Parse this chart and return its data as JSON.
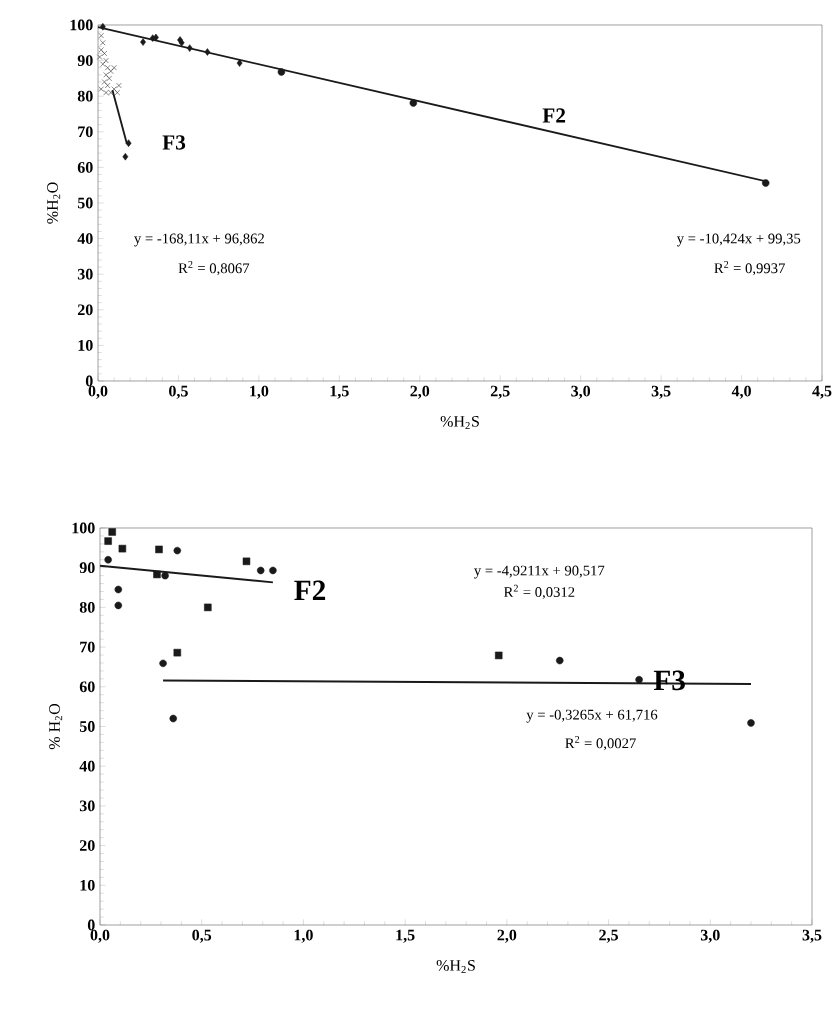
{
  "chart_data": [
    {
      "type": "scatter",
      "xlabel": "%H$_{2}$S",
      "ylabel": "%H$_{2}$O",
      "xlim": [
        0,
        4.5
      ],
      "ylim": [
        0,
        100
      ],
      "xticks": [
        {
          "value": 0,
          "label": "0,0"
        },
        {
          "value": 0.5,
          "label": "0,5"
        },
        {
          "value": 1,
          "label": "1,0"
        },
        {
          "value": 1.5,
          "label": "1,5"
        },
        {
          "value": 2,
          "label": "2,0"
        },
        {
          "value": 2.5,
          "label": "2,5"
        },
        {
          "value": 3,
          "label": "3,0"
        },
        {
          "value": 3.5,
          "label": "3,5"
        },
        {
          "value": 4,
          "label": "4,0"
        },
        {
          "value": 4.5,
          "label": "4,5"
        }
      ],
      "yticks": [
        0,
        10,
        20,
        30,
        40,
        50,
        60,
        70,
        80,
        90,
        100
      ],
      "series": [
        {
          "type": "scatter",
          "marker": "diamond",
          "color": "#1a1a1a",
          "x": [
            0.03,
            0.28,
            0.34,
            0.36,
            0.51,
            0.52,
            0.57,
            0.68,
            0.88
          ],
          "values": [
            99.5,
            95.2,
            96.3,
            96.5,
            95.8,
            95,
            93.5,
            92.4,
            89.3
          ]
        },
        {
          "type": "scatter",
          "marker": "circle",
          "color": "#1a1a1a",
          "x": [
            1.14,
            1.96,
            4.15
          ],
          "values": [
            86.8,
            78.1,
            55.6
          ]
        },
        {
          "type": "scatter",
          "marker": "cross",
          "color": "#1a1a1a",
          "x": [
            0.02,
            0.03,
            0.02,
            0.04,
            0.01,
            0.05,
            0.03,
            0.06,
            0.08,
            0.1,
            0.05,
            0.07,
            0.04,
            0.02,
            0.05,
            0.08,
            0.1,
            0.12,
            0.13,
            0.06
          ],
          "values": [
            97,
            95,
            93,
            92,
            91,
            90,
            89,
            88,
            87,
            88,
            86,
            85,
            84,
            82,
            81,
            81,
            82,
            81,
            83,
            83
          ]
        },
        {
          "type": "scatter",
          "marker": "diamond",
          "color": "#1a1a1a",
          "x": [
            0.19,
            0.17
          ],
          "values": [
            66.8,
            63
          ]
        },
        {
          "type": "line",
          "color": "#1a1a1a",
          "x": [
            0,
            4.15
          ],
          "values": [
            99.4,
            56.1
          ]
        },
        {
          "type": "line",
          "color": "#1a1a1a",
          "x": [
            0.09,
            0.18
          ],
          "values": [
            81.7,
            66.6
          ]
        }
      ],
      "annotations": [
        "F3",
        "F2",
        "y = -168,11x + 96,862",
        "R$^{2}$ = 0,8067",
        "y = -10,424x + 99,35",
        "R$^{2}$ = 0,9937"
      ]
    },
    {
      "type": "scatter",
      "xlabel": "%H$_{2}$S",
      "ylabel": "% H$_{2}$O",
      "xlim": [
        0,
        3.5
      ],
      "ylim": [
        0,
        100
      ],
      "xticks": [
        {
          "value": 0,
          "label": "0,0"
        },
        {
          "value": 0.5,
          "label": "0,5"
        },
        {
          "value": 1,
          "label": "1,0"
        },
        {
          "value": 1.5,
          "label": "1,5"
        },
        {
          "value": 2,
          "label": "2,0"
        },
        {
          "value": 2.5,
          "label": "2,5"
        },
        {
          "value": 3,
          "label": "3,0"
        },
        {
          "value": 3.5,
          "label": "3,5"
        }
      ],
      "yticks": [
        0,
        10,
        20,
        30,
        40,
        50,
        60,
        70,
        80,
        90,
        100
      ],
      "series": [
        {
          "type": "scatter",
          "marker": "square",
          "color": "#1a1a1a",
          "x": [
            0.06,
            0.04,
            0.11,
            0.29,
            0.28,
            0.72,
            0.53,
            0.38
          ],
          "values": [
            99,
            96.7,
            94.8,
            94.6,
            88.3,
            91.6,
            80,
            68.6
          ]
        },
        {
          "type": "scatter",
          "marker": "circle",
          "color": "#1a1a1a",
          "x": [
            0.04,
            0.38,
            0.32,
            0.09,
            0.09,
            0.79,
            0.85
          ],
          "values": [
            92,
            94.3,
            88,
            84.5,
            80.5,
            89.3,
            89.3
          ]
        },
        {
          "type": "scatter",
          "marker": "circle",
          "color": "#1a1a1a",
          "x": [
            0.31,
            0.36,
            2.26,
            2.65,
            3.2
          ],
          "values": [
            65.9,
            52,
            66.6,
            61.8,
            50.9
          ]
        },
        {
          "type": "scatter",
          "marker": "square",
          "color": "#1a1a1a",
          "x": [
            1.96
          ],
          "values": [
            67.9
          ]
        },
        {
          "type": "line",
          "color": "#1a1a1a",
          "x": [
            0,
            0.85
          ],
          "values": [
            90.5,
            86.3
          ]
        },
        {
          "type": "line",
          "color": "#1a1a1a",
          "x": [
            0.31,
            3.2
          ],
          "values": [
            61.6,
            60.7
          ]
        }
      ],
      "annotations": [
        "F2",
        "F3",
        "y = -4,9211x + 90,517",
        "R$^{2}$ = 0,0312",
        "y = -0,3265x + 61,716",
        "R$^{2}$ = 0,0027"
      ]
    }
  ]
}
